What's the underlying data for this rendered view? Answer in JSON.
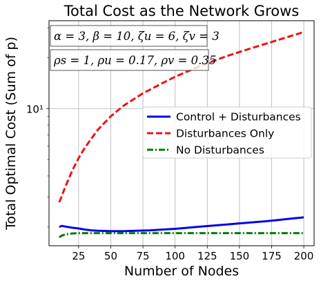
{
  "chart_data": {
    "type": "line",
    "title": "Total Cost as the Network Grows",
    "xlabel": "Number of Nodes",
    "ylabel": "Total Optimal Cost (Sum of p)",
    "yscale": "log",
    "xlim": [
      2,
      208
    ],
    "ylim": [
      1.55,
      33
    ],
    "grid": true,
    "legend_position": "center-right",
    "x_ticks": [
      25,
      50,
      75,
      100,
      125,
      150,
      175,
      200
    ],
    "y_ticks": [
      10
    ],
    "y_tick_labels": [
      "10¹"
    ],
    "annotations": [
      "α = 3, β = 10, ζu = 6, ζv = 3",
      "ρs = 1, ρu = 0.17, ρv = 0.35"
    ],
    "series": [
      {
        "name": "Control + Disturbances",
        "color": "#0000ee",
        "style": "solid",
        "x": [
          10,
          12,
          15,
          20,
          25,
          30,
          35,
          40,
          50,
          60,
          70,
          80,
          90,
          100,
          110,
          120,
          130,
          140,
          150,
          160,
          170,
          180,
          190,
          200
        ],
        "y": [
          2.0,
          2.03,
          2.01,
          1.98,
          1.96,
          1.93,
          1.91,
          1.9,
          1.89,
          1.89,
          1.9,
          1.91,
          1.93,
          1.95,
          1.98,
          2.01,
          2.04,
          2.07,
          2.1,
          2.13,
          2.16,
          2.2,
          2.24,
          2.28
        ]
      },
      {
        "name": "Disturbances Only",
        "color": "#ee1111",
        "style": "dashed",
        "x": [
          10,
          15,
          20,
          25,
          30,
          40,
          50,
          60,
          75,
          90,
          100,
          120,
          140,
          160,
          180,
          200
        ],
        "y": [
          2.8,
          3.5,
          4.3,
          5.1,
          5.9,
          7.5,
          9.0,
          10.4,
          12.3,
          14.1,
          15.4,
          17.9,
          20.4,
          22.8,
          25.4,
          28.3
        ]
      },
      {
        "name": "No Disturbances",
        "color": "#007700",
        "style": "dashdot",
        "x": [
          10,
          12,
          15,
          20,
          25,
          30,
          40,
          50,
          75,
          100,
          125,
          150,
          175,
          200
        ],
        "y": [
          1.74,
          1.78,
          1.81,
          1.83,
          1.84,
          1.84,
          1.84,
          1.84,
          1.84,
          1.84,
          1.84,
          1.84,
          1.84,
          1.84
        ]
      }
    ]
  }
}
